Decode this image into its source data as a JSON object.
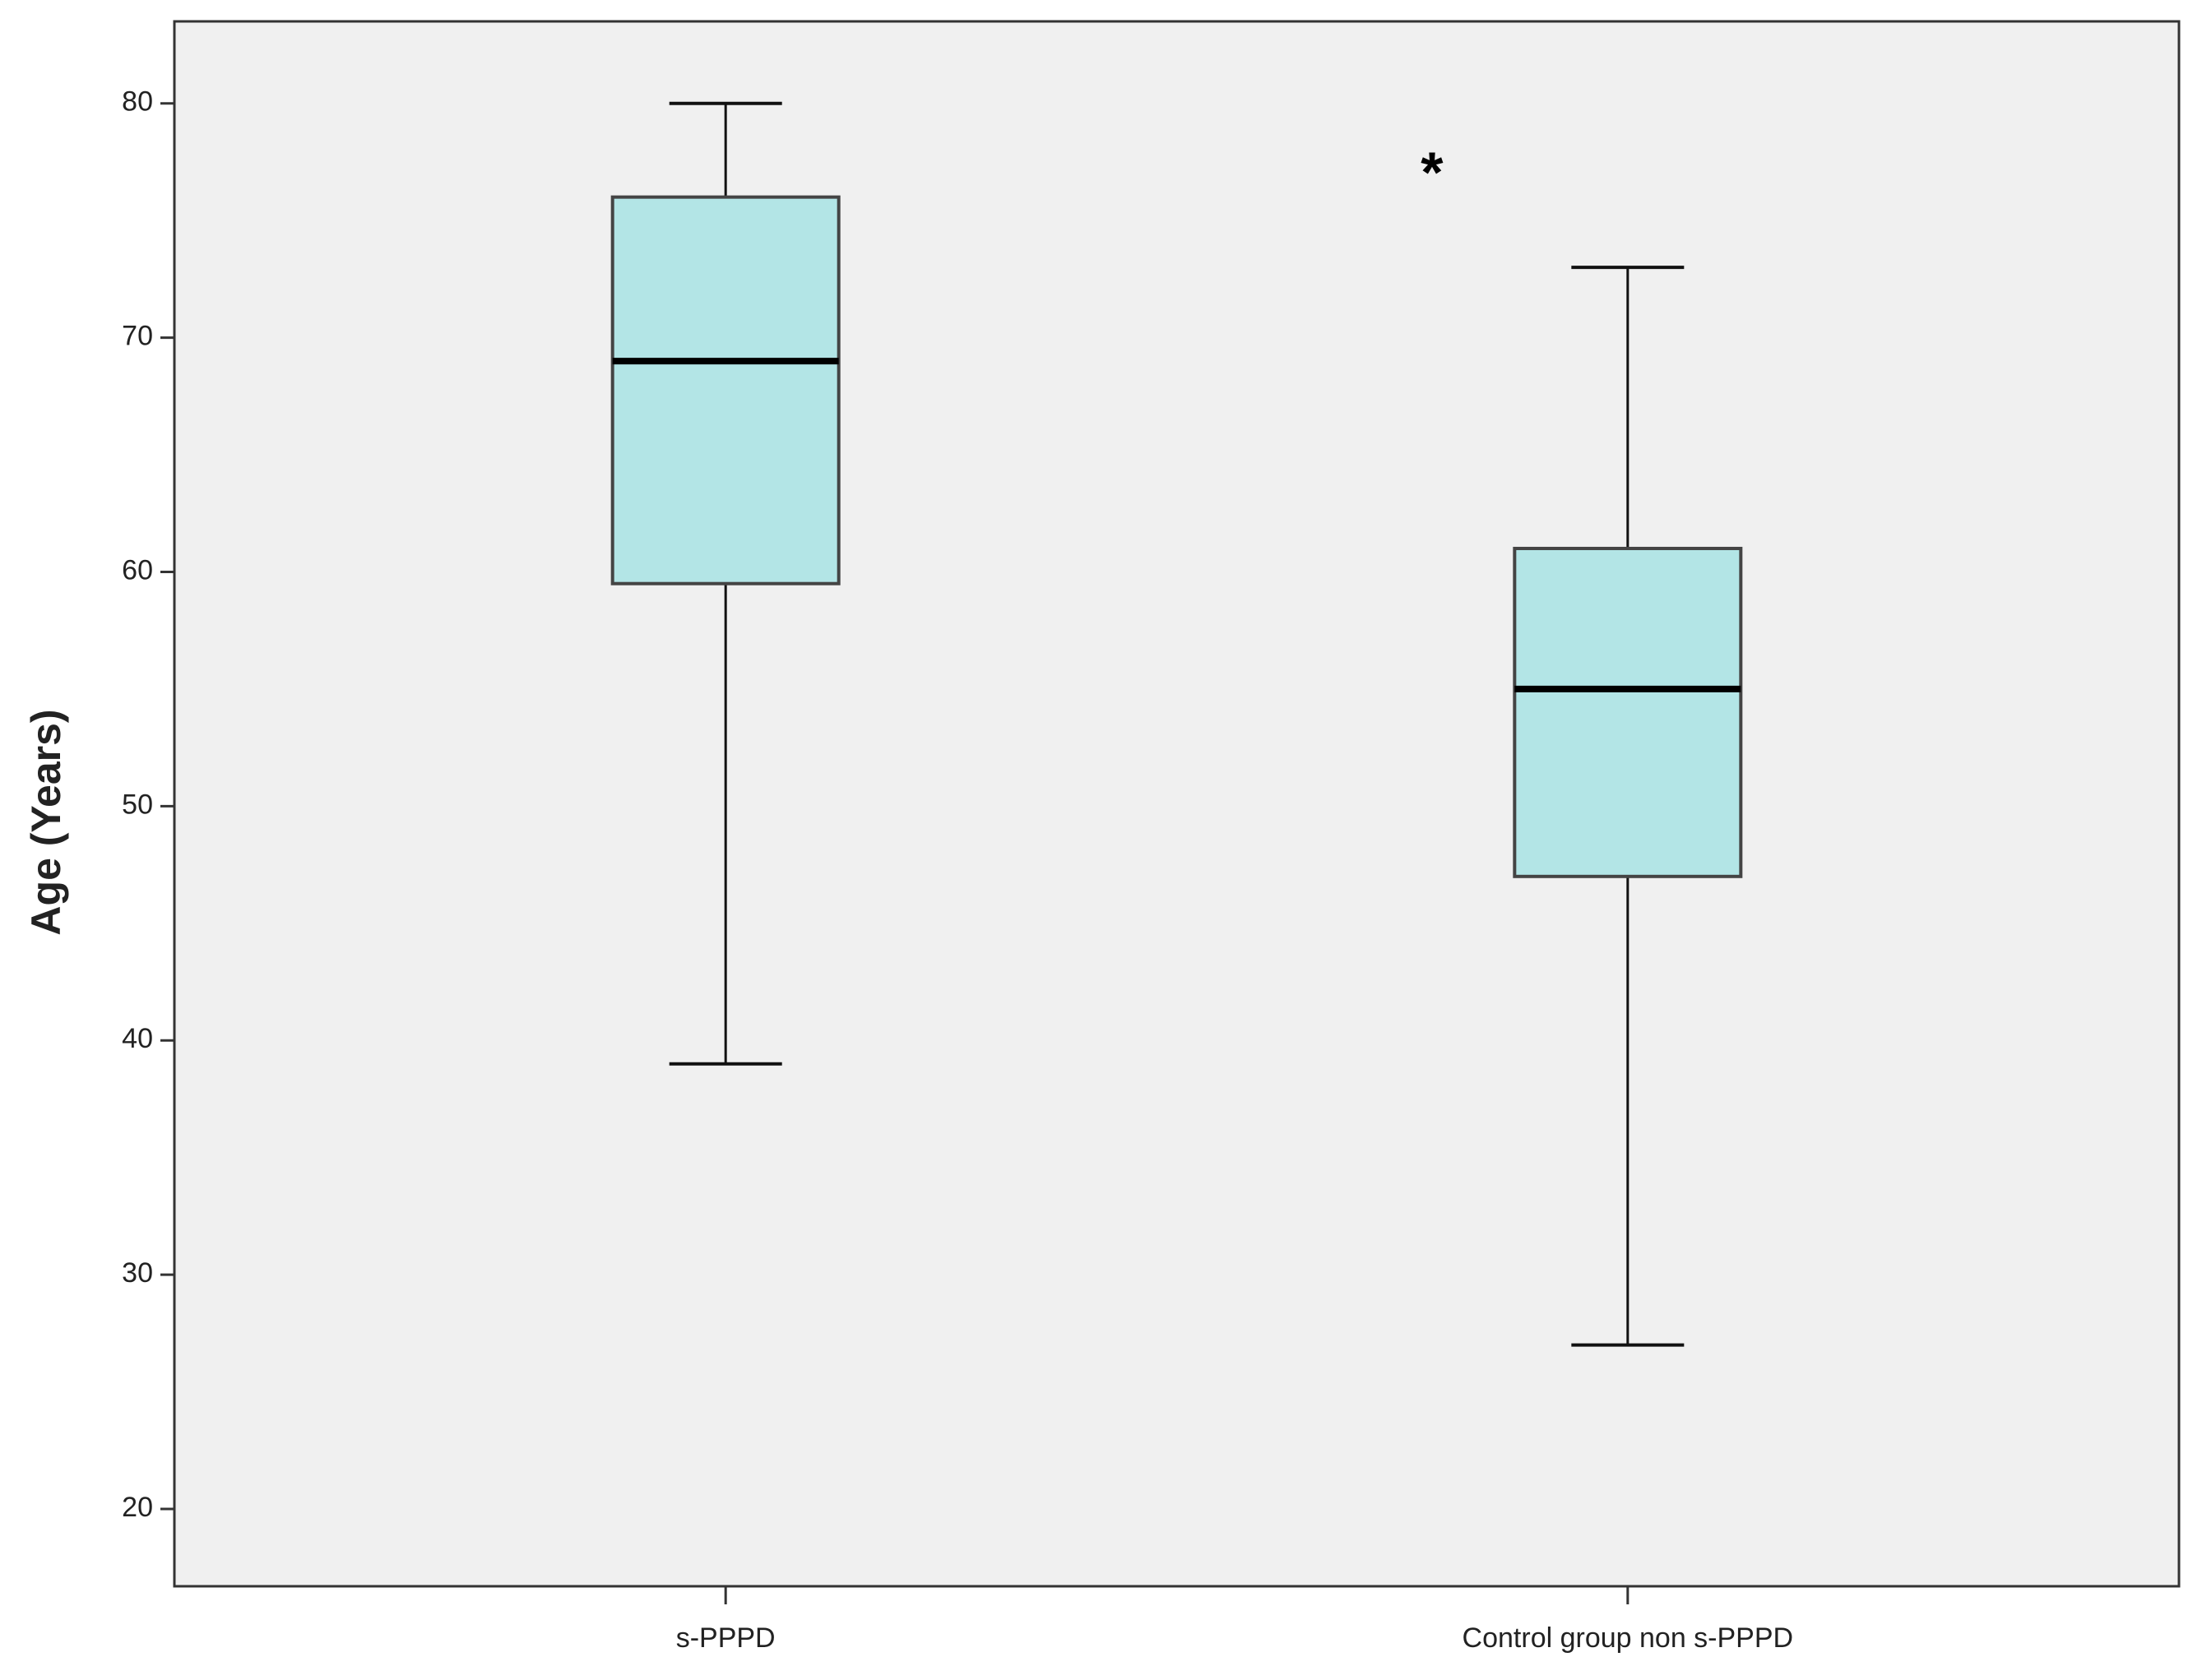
{
  "chart_data": {
    "type": "box",
    "y_label": "Age (Years)",
    "annotation": "*",
    "categories": [
      "s-PPPD",
      "Control group non s-PPPD"
    ],
    "boxes": [
      {
        "min": 39,
        "q1": 59.5,
        "median": 69,
        "q3": 76,
        "max": 80
      },
      {
        "min": 27,
        "q1": 47,
        "median": 55,
        "q3": 61,
        "max": 73
      }
    ],
    "color": "#b3e5e6",
    "background": "#f0f0f0",
    "ylim": [
      16.7,
      83.5
    ],
    "yticks": [
      20,
      30,
      40,
      50,
      60,
      70,
      80
    ]
  }
}
